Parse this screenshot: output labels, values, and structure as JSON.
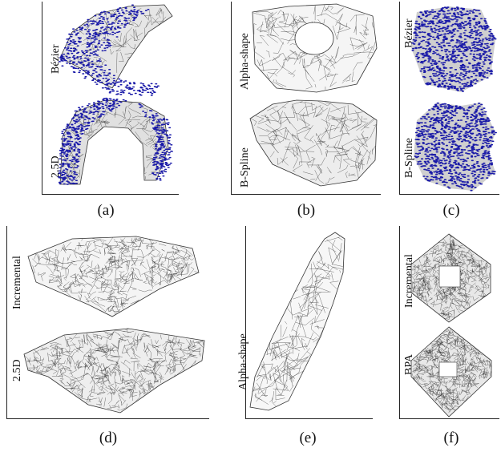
{
  "panels": {
    "a": {
      "caption": "(a)",
      "labels": [
        "Bézier",
        "2.5D"
      ]
    },
    "b": {
      "caption": "(b)",
      "labels": [
        "Alpha-shape",
        "B-Spline"
      ]
    },
    "c": {
      "caption": "(c)",
      "labels": [
        "Bézier",
        "B-Spline"
      ]
    },
    "d": {
      "caption": "(d)",
      "labels": [
        "Incremental",
        "2.5D"
      ]
    },
    "e": {
      "caption": "(e)",
      "labels": [
        "Alpha-shape"
      ]
    },
    "f": {
      "caption": "(f)",
      "labels": [
        "Incremental",
        "BPA"
      ]
    }
  },
  "colors": {
    "points": "#1a1aa8",
    "mesh": "#333333",
    "fill": "#d8d8d8"
  }
}
